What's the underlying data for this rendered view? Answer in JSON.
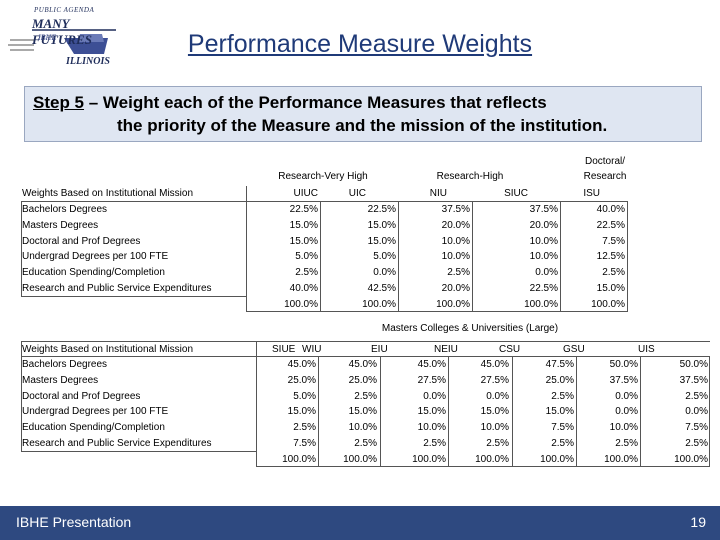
{
  "logo": {
    "line1": "PUBLIC AGENDA",
    "line2": "MANY FUTURES",
    "line3": "IBHE",
    "line4": "ILLINOIS"
  },
  "title": "Performance Measure Weights",
  "step": {
    "label": "Step 5",
    "text1": " – Weight each of the Performance Measures that reflects",
    "text2": "the priority of the Measure and the mission of the institution."
  },
  "table1": {
    "group_headers": [
      "Research-Very High",
      "Research-High",
      "Doctoral/",
      "Research"
    ],
    "header_label": "Weights Based on Institutional Mission",
    "institutions": [
      "UIUC",
      "UIC",
      "NIU",
      "SIUC",
      "ISU"
    ],
    "rows": [
      {
        "label": "Bachelors Degrees",
        "values": [
          "22.5%",
          "22.5%",
          "37.5%",
          "37.5%",
          "40.0%"
        ]
      },
      {
        "label": "Masters Degrees",
        "values": [
          "15.0%",
          "15.0%",
          "20.0%",
          "20.0%",
          "22.5%"
        ]
      },
      {
        "label": "Doctoral and Prof Degrees",
        "values": [
          "15.0%",
          "15.0%",
          "10.0%",
          "10.0%",
          "7.5%"
        ]
      },
      {
        "label": "Undergrad Degrees per 100 FTE",
        "values": [
          "5.0%",
          "5.0%",
          "10.0%",
          "10.0%",
          "12.5%"
        ]
      },
      {
        "label": "Education Spending/Completion",
        "values": [
          "2.5%",
          "0.0%",
          "2.5%",
          "0.0%",
          "2.5%"
        ]
      },
      {
        "label": "Research and Public Service Expenditures",
        "values": [
          "40.0%",
          "42.5%",
          "20.0%",
          "22.5%",
          "15.0%"
        ]
      }
    ],
    "totals": [
      "100.0%",
      "100.0%",
      "100.0%",
      "100.0%",
      "100.0%"
    ]
  },
  "table2": {
    "group_header": "Masters Colleges & Universities (Large)",
    "header_label": "Weights Based on Institutional Mission",
    "institutions": [
      "SIUE",
      "WIU",
      "EIU",
      "NEIU",
      "CSU",
      "GSU",
      "UIS"
    ],
    "rows": [
      {
        "label": "Bachelors Degrees",
        "values": [
          "45.0%",
          "45.0%",
          "45.0%",
          "45.0%",
          "47.5%",
          "50.0%",
          "50.0%"
        ]
      },
      {
        "label": "Masters Degrees",
        "values": [
          "25.0%",
          "25.0%",
          "27.5%",
          "27.5%",
          "25.0%",
          "37.5%",
          "37.5%"
        ]
      },
      {
        "label": "Doctoral and Prof Degrees",
        "values": [
          "5.0%",
          "2.5%",
          "0.0%",
          "0.0%",
          "2.5%",
          "0.0%",
          "2.5%"
        ]
      },
      {
        "label": "Undergrad Degrees per 100 FTE",
        "values": [
          "15.0%",
          "15.0%",
          "15.0%",
          "15.0%",
          "15.0%",
          "0.0%",
          "0.0%"
        ]
      },
      {
        "label": "Education Spending/Completion",
        "values": [
          "2.5%",
          "10.0%",
          "10.0%",
          "10.0%",
          "7.5%",
          "10.0%",
          "7.5%"
        ]
      },
      {
        "label": "Research and Public Service Expenditures",
        "values": [
          "7.5%",
          "2.5%",
          "2.5%",
          "2.5%",
          "2.5%",
          "2.5%",
          "2.5%"
        ]
      }
    ],
    "totals": [
      "100.0%",
      "100.0%",
      "100.0%",
      "100.0%",
      "100.0%",
      "100.0%",
      "100.0%"
    ]
  },
  "footer": {
    "text": "IBHE Presentation",
    "page": "19"
  },
  "colors": {
    "title": "#1f3a78",
    "step_bg": "#dfe6f2",
    "footer_bg": "#2e4980"
  }
}
